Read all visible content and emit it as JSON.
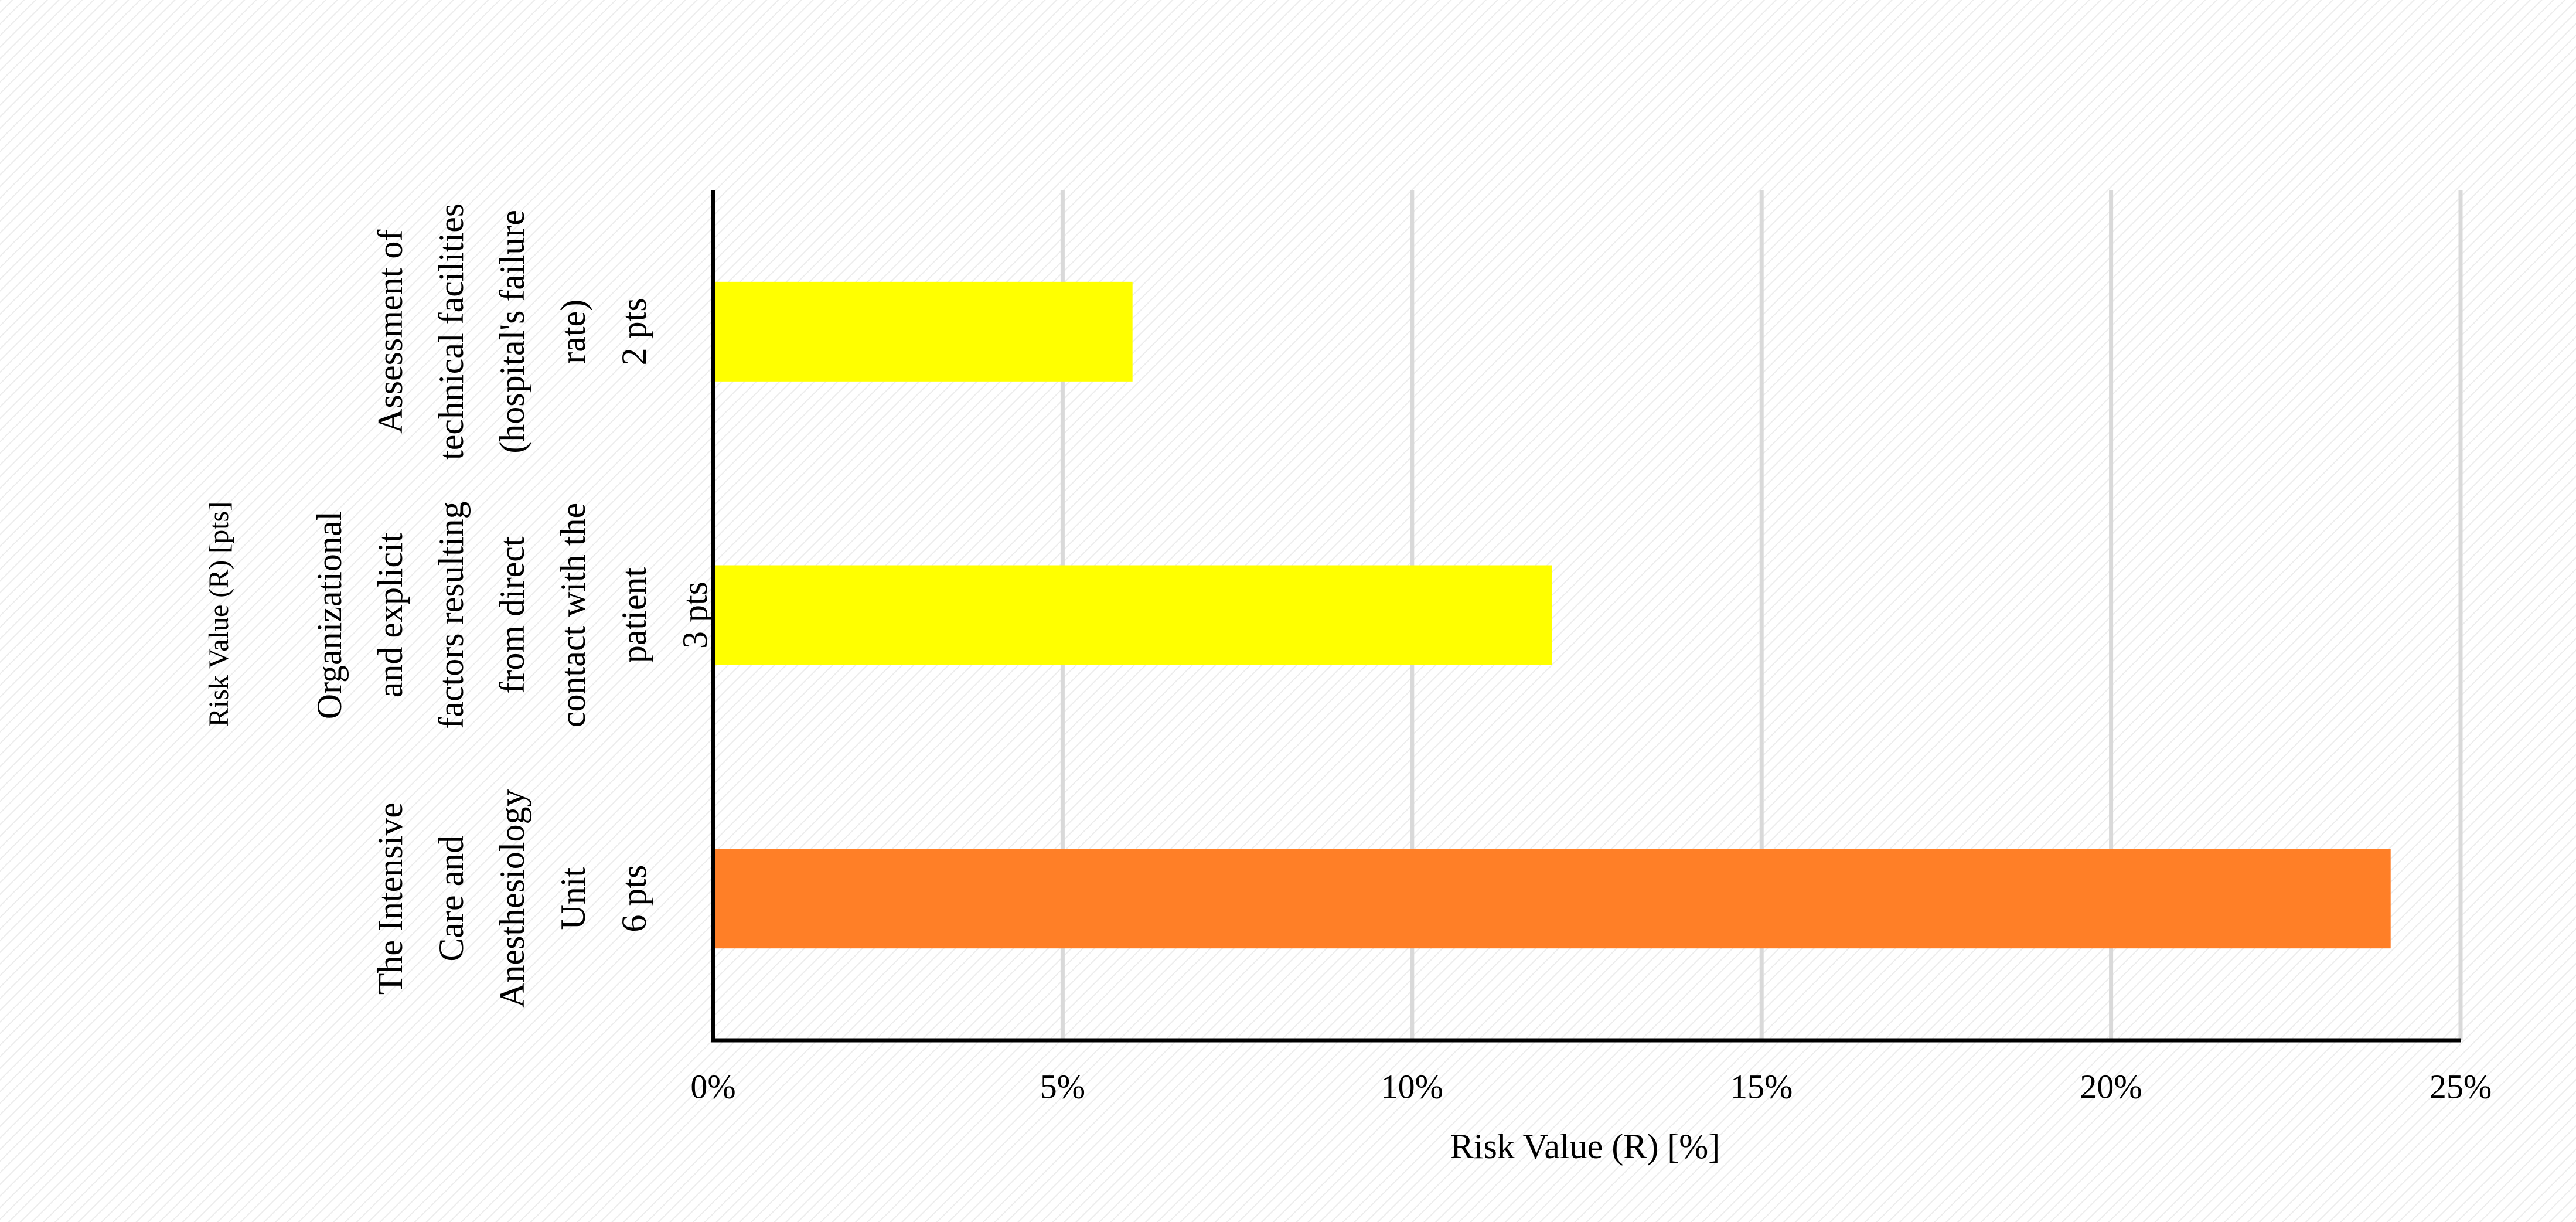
{
  "chart_data": {
    "type": "bar",
    "orientation": "horizontal",
    "categories": [
      "The Intensive\nCare and\nAnesthesiology\nUnit\n6 pts",
      "Organizational\nand explicit\nfactors resulting\nfrom direct\ncontact with the\npatient\n3 pts",
      "Assessment of\ntechnical facilities\n(hospital's failure\nrate)\n2 pts"
    ],
    "values": [
      24,
      12,
      6
    ],
    "colors": [
      "#ff7f27",
      "#ffff00",
      "#ffff00"
    ],
    "xlabel": "Risk Value (R) [%]",
    "ylabel": "Risk Value (R) [pts]",
    "xlim": [
      0,
      25
    ],
    "xticks": [
      {
        "value": 0,
        "label": "0%"
      },
      {
        "value": 5,
        "label": "5%"
      },
      {
        "value": 10,
        "label": "10%"
      },
      {
        "value": 15,
        "label": "15%"
      },
      {
        "value": 20,
        "label": "20%"
      },
      {
        "value": 25,
        "label": "25%"
      }
    ],
    "grid": true
  }
}
